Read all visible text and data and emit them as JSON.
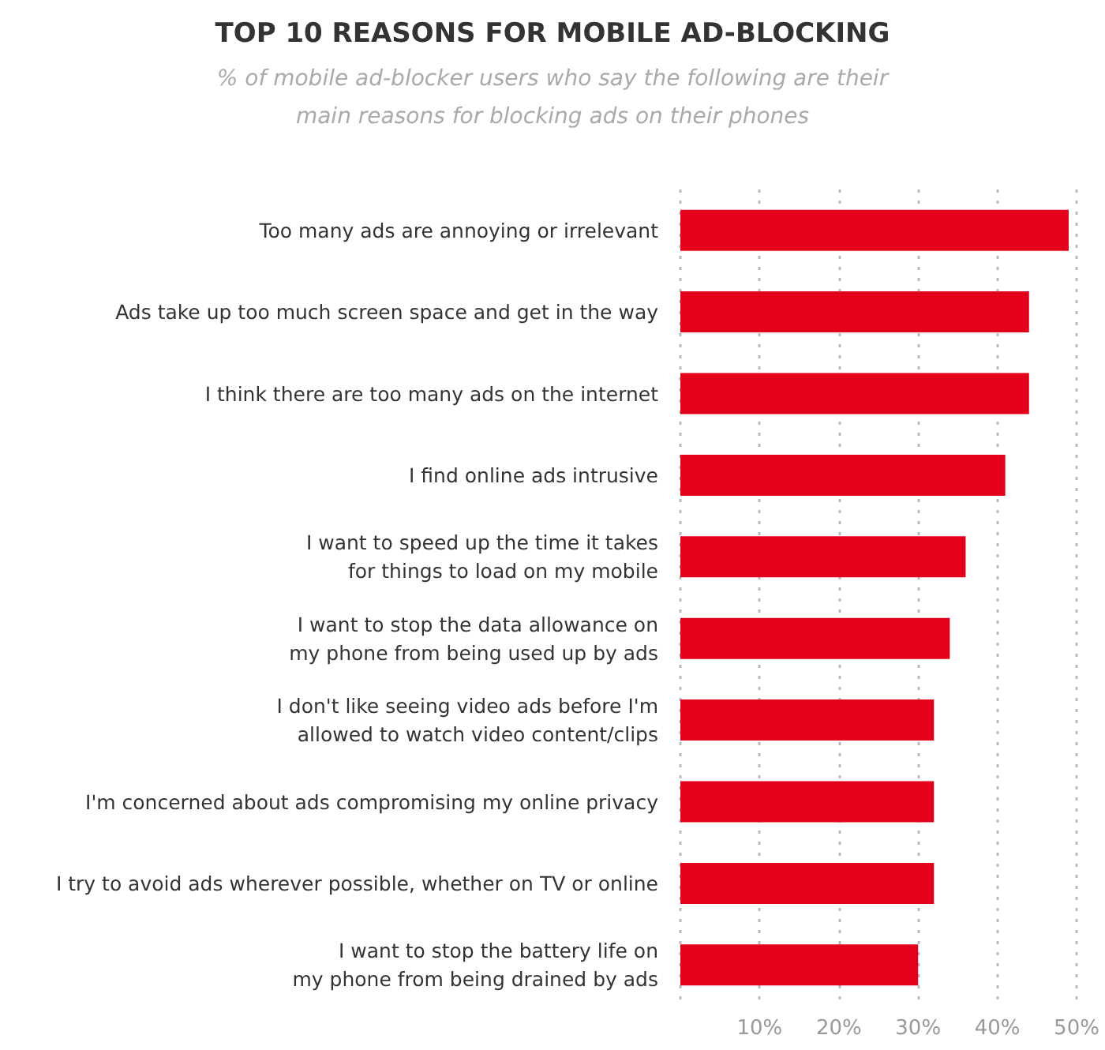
{
  "chart_data": {
    "type": "bar",
    "orientation": "horizontal",
    "title": "TOP 10 REASONS FOR MOBILE AD-BLOCKING",
    "subtitle": "% of mobile ad-blocker users who say the following are their\nmain reasons for blocking ads on their phones",
    "categories": [
      "Too many ads are annoying or irrelevant",
      "Ads take up too much screen space and get in the way",
      "I think there are too many ads on the internet",
      "I find online ads intrusive",
      "I want to speed up the time it takes\nfor things to load on my mobile",
      "I want to stop the data allowance on\nmy phone from being used up by ads",
      "I don't like seeing video ads before I'm\nallowed to watch video content/clips",
      "I'm concerned about ads compromising my online privacy",
      "I try to avoid ads wherever possible, whether on TV or online",
      "I want to stop the battery life on\nmy phone from being drained by ads"
    ],
    "values": [
      49,
      44,
      44,
      41,
      36,
      34,
      32,
      32,
      32,
      30
    ],
    "color": "#e2001a",
    "xlim": [
      0,
      50
    ],
    "xticks": [
      {
        "value": 0,
        "label": null
      },
      {
        "value": 10,
        "label": "10%"
      },
      {
        "value": 20,
        "label": "20%"
      },
      {
        "value": 30,
        "label": "30%"
      },
      {
        "value": 40,
        "label": "40%"
      },
      {
        "value": 50,
        "label": "50%"
      }
    ],
    "grid": "x"
  }
}
